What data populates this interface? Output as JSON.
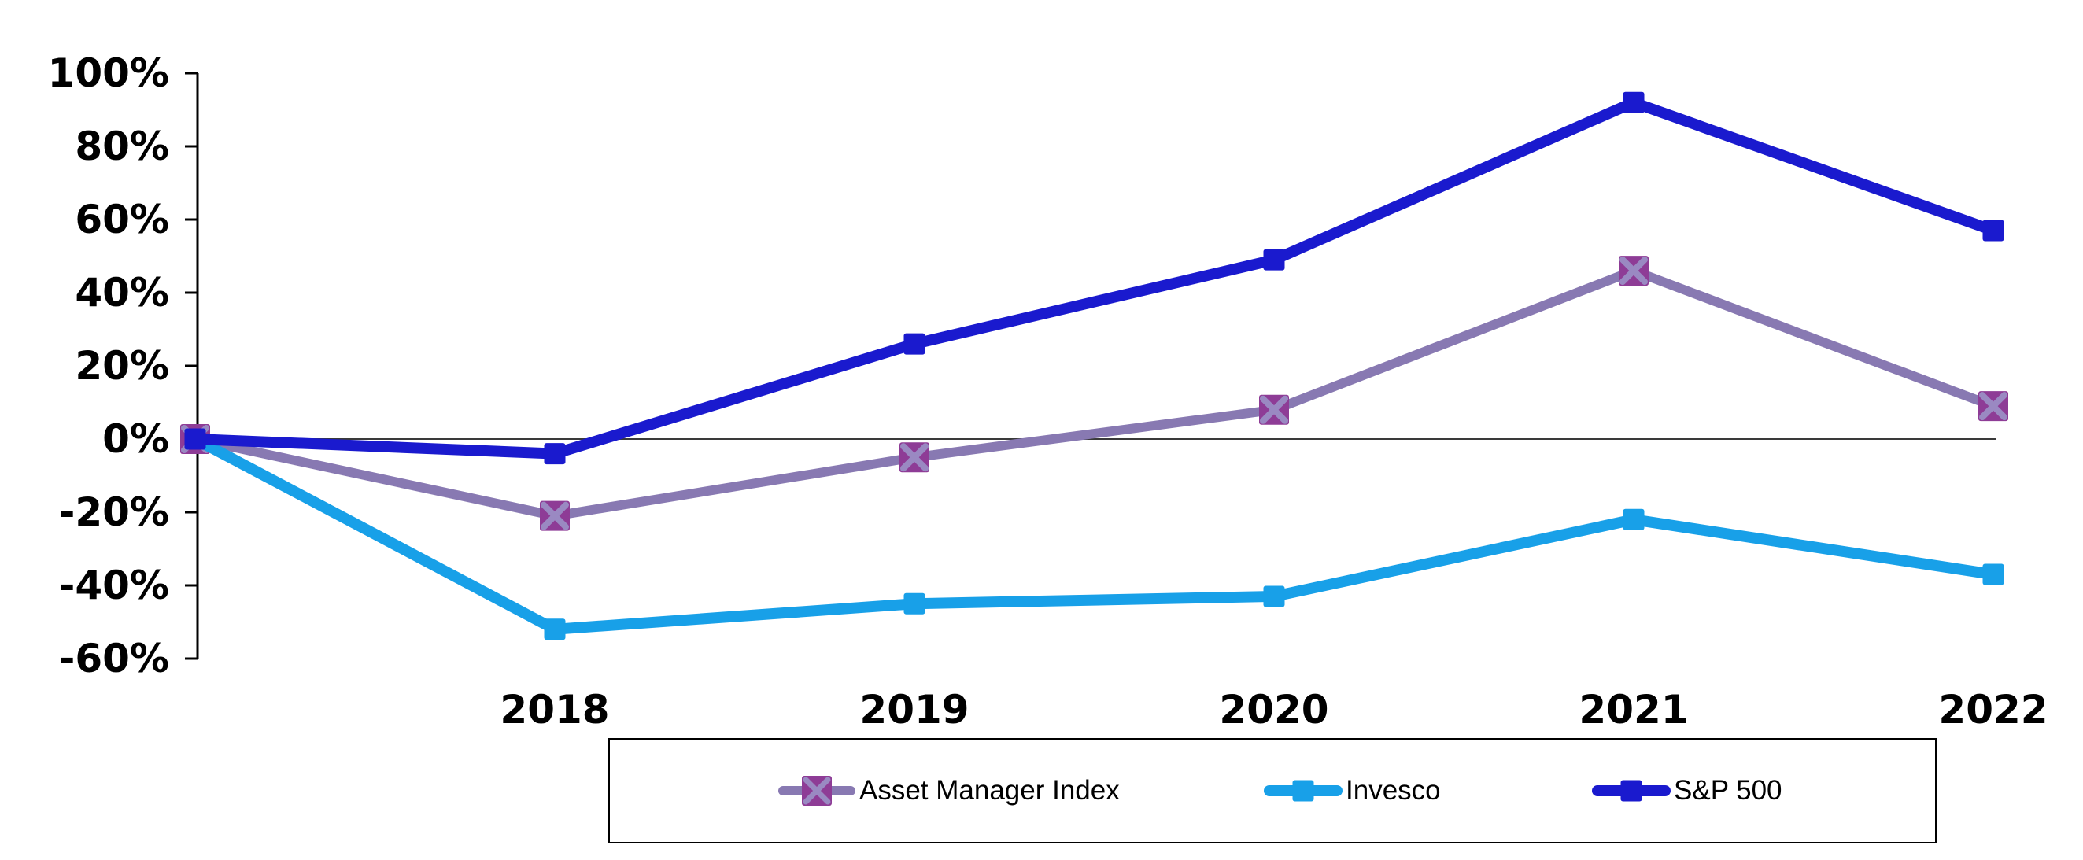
{
  "chart_data": {
    "type": "line",
    "title": "",
    "x_categories": [
      "",
      "2018",
      "2019",
      "2020",
      "2021",
      "2022"
    ],
    "x_axis_visible_labels": [
      "2018",
      "2019",
      "2020",
      "2021",
      "2022"
    ],
    "y_tick_labels": [
      "100%",
      "80%",
      "60%",
      "40%",
      "20%",
      "0%",
      "-20%",
      "-40%",
      "-60%"
    ],
    "y_tick_values": [
      100,
      80,
      60,
      40,
      20,
      0,
      -20,
      -40,
      -60
    ],
    "ylim": [
      -60,
      100
    ],
    "grid": "zero line only",
    "legend_position": "bottom center box",
    "series": [
      {
        "name": "Asset Manager Index",
        "values": [
          0,
          -21,
          -5,
          8,
          46,
          9
        ],
        "color": "#8879b2",
        "marker": "x-square",
        "marker_fill": "#8e3c96",
        "marker_x_color": "#9a89c2",
        "line_width": 12,
        "marker_size": 38
      },
      {
        "name": "Invesco",
        "values": [
          0,
          -52,
          -45,
          -43,
          -22,
          -37
        ],
        "color": "#18a0e8",
        "marker": "square",
        "marker_fill": "#18a0e8",
        "line_width": 14,
        "marker_size": 27
      },
      {
        "name": "S&P 500",
        "values": [
          0,
          -4,
          26,
          49,
          92,
          57
        ],
        "color": "#1a1ace",
        "marker": "square",
        "marker_fill": "#1a1ace",
        "line_width": 14,
        "marker_size": 27
      }
    ]
  },
  "colors": {
    "background": "#ffffff",
    "axis": "#000000",
    "zero_line": "#3a3a3a",
    "label_text": "#000000"
  }
}
